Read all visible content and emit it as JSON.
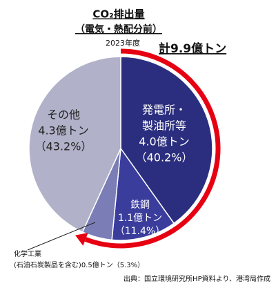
{
  "chart_data": {
    "type": "pie",
    "title": "CO₂排出量",
    "subtitle": "（電気・熱配分前）",
    "year": "2023年度",
    "total_label": "計9.9億トン",
    "categories": [
      [
        "発電所・",
        "製油所等"
      ],
      [
        "鉄鋼"
      ],
      [
        "化学工業",
        "(石油石炭製品を含む)"
      ],
      [
        "その他"
      ]
    ],
    "amount_labels": [
      "4.0億トン",
      "1.1億トン",
      "0.5億トン",
      "4.3億トン"
    ],
    "values": [
      40.2,
      11.4,
      5.3,
      43.2
    ],
    "value_labels": [
      "（40.2%）",
      "（11.4%）",
      "（5.3%）",
      "（43.2%）"
    ],
    "colors": [
      "#2b2e7e",
      "#3a3d9c",
      "#7b7db6",
      "#b1b1c9"
    ],
    "arrow_color": "#e60012",
    "source": "出典：国立環境研究所HP資料より、港湾局作成"
  }
}
